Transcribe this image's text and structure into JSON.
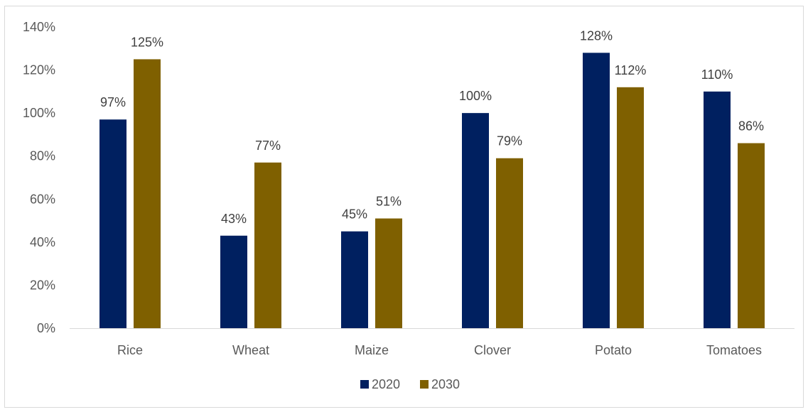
{
  "chart_data": {
    "type": "bar",
    "title": "",
    "xlabel": "",
    "ylabel": "",
    "categories": [
      "Rice",
      "Wheat",
      "Maize",
      "Clover",
      "Potato",
      "Tomatoes"
    ],
    "series": [
      {
        "name": "2020",
        "color": "#002060",
        "values": [
          97,
          43,
          45,
          100,
          128,
          110
        ],
        "labels": [
          "97%",
          "43%",
          "45%",
          "100%",
          "128%",
          "110%"
        ]
      },
      {
        "name": "2030",
        "color": "#7f6000",
        "values": [
          125,
          77,
          51,
          79,
          112,
          86
        ],
        "labels": [
          "125%",
          "77%",
          "51%",
          "79%",
          "112%",
          "86%"
        ]
      }
    ],
    "ylim": [
      0,
      140
    ],
    "yticks": [
      0,
      20,
      40,
      60,
      80,
      100,
      120,
      140
    ],
    "ytick_labels": [
      "0%",
      "20%",
      "40%",
      "60%",
      "80%",
      "100%",
      "120%",
      "140%"
    ],
    "grid": false,
    "legend_position": "bottom"
  }
}
